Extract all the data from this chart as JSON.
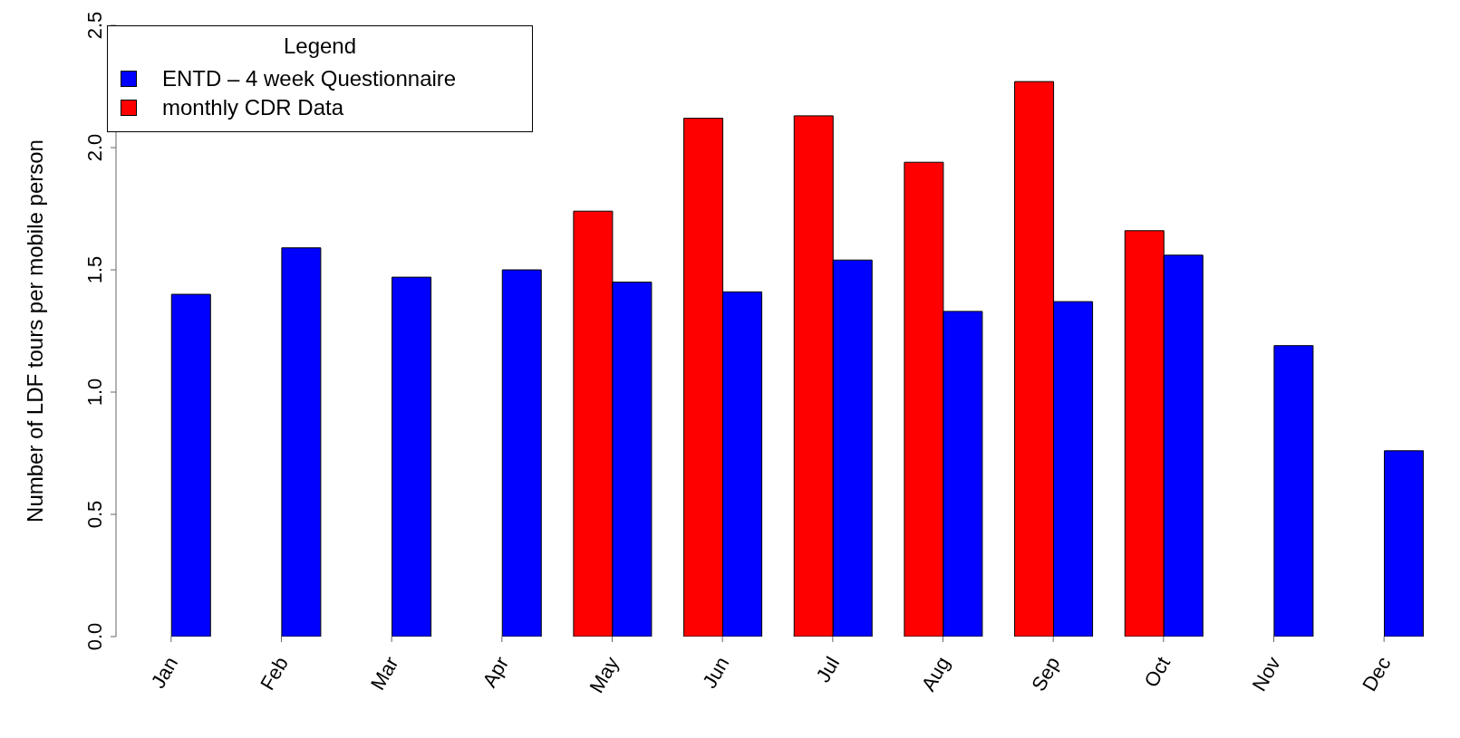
{
  "chart_data": {
    "type": "bar",
    "ylabel": "Number of LDF tours per mobile person",
    "legend_title": "Legend",
    "legend": "top left",
    "grid": false,
    "categories": [
      "Jan",
      "Feb",
      "Mar",
      "Apr",
      "May",
      "Jun",
      "Jul",
      "Aug",
      "Sep",
      "Oct",
      "Nov",
      "Dec"
    ],
    "ylim": [
      0,
      2.5
    ],
    "yticks": [
      {
        "value": 0,
        "label": "0.0"
      },
      {
        "value": 0.5,
        "label": "0.5"
      },
      {
        "value": 1,
        "label": "1.0"
      },
      {
        "value": 1.5,
        "label": "1.5"
      },
      {
        "value": 2,
        "label": "2.0"
      },
      {
        "value": 2.5,
        "label": "2.5"
      }
    ],
    "series": [
      {
        "name": "ENTD – 4 week Questionnaire",
        "color": "#0000ff",
        "values": [
          1.4,
          1.59,
          1.47,
          1.5,
          1.45,
          1.41,
          1.54,
          1.33,
          1.37,
          1.56,
          1.19,
          0.76
        ]
      },
      {
        "name": "monthly CDR Data",
        "color": "#ff0000",
        "values": [
          0,
          0,
          0,
          0,
          1.74,
          2.12,
          2.13,
          1.94,
          2.27,
          1.66,
          0,
          0
        ]
      }
    ]
  }
}
